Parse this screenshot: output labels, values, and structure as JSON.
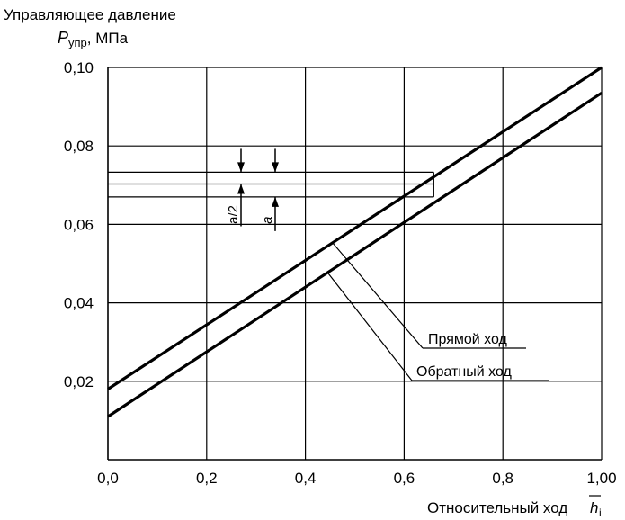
{
  "chart_data": {
    "type": "line",
    "ylabel_title": "Управляющее давление",
    "ylabel_symbol": "P",
    "ylabel_sub": "упр",
    "ylabel_unit": ", МПа",
    "xlabel_text": "Относительный ход",
    "xlabel_symbol": "h",
    "xlabel_sub": "i",
    "xlim": [
      0,
      1.0
    ],
    "ylim": [
      0.0,
      0.1
    ],
    "x_ticks": [
      0.0,
      0.2,
      0.4,
      0.6,
      0.8,
      1.0
    ],
    "x_tick_labels": [
      "0,0",
      "0,2",
      "0,4",
      "0,6",
      "0,8",
      "1,00"
    ],
    "y_ticks": [
      0.02,
      0.04,
      0.06,
      0.08,
      0.1
    ],
    "y_tick_labels": [
      "0,02",
      "0,04",
      "0,06",
      "0,08",
      "0,10"
    ],
    "grid": true,
    "series": [
      {
        "name": "Прямой ход",
        "x": [
          0.0,
          1.0
        ],
        "y": [
          0.018,
          0.1
        ]
      },
      {
        "name": "Обратный ход",
        "x": [
          0.0,
          1.0
        ],
        "y": [
          0.011,
          0.0935
        ]
      }
    ],
    "annotations": {
      "band_levels": [
        0.0733,
        0.0703,
        0.067
      ],
      "band_end_x": 0.66,
      "half_band_label": "a/2",
      "full_band_label": "a"
    }
  }
}
